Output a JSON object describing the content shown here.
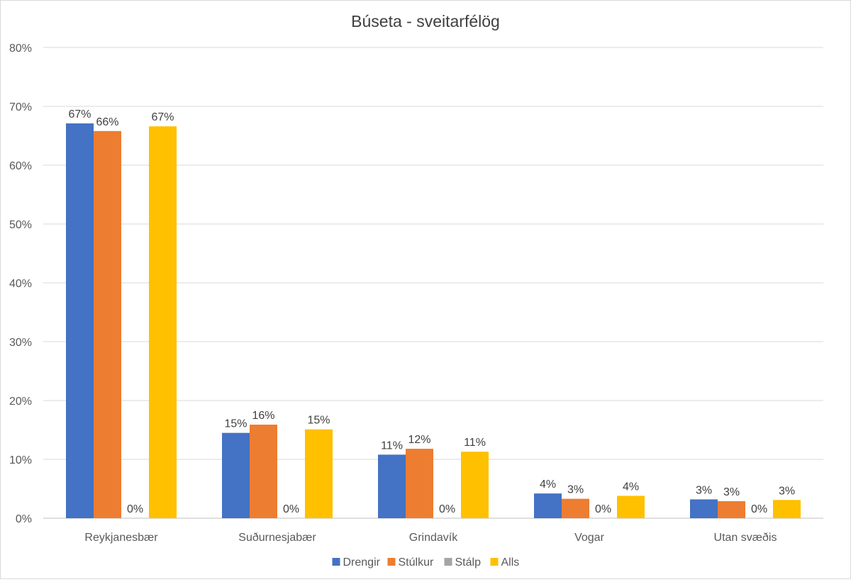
{
  "chart_data": {
    "type": "bar",
    "title": "Búseta - sveitarfélög",
    "categories": [
      "Reykjanesbær",
      "Suðurnesjabær",
      "Grindavík",
      "Vogar",
      "Utan svæðis"
    ],
    "series": [
      {
        "name": "Drengir",
        "color": "#4472C4",
        "values": [
          67.1,
          14.5,
          10.8,
          4.2,
          3.2
        ],
        "labels": [
          "67%",
          "15%",
          "11%",
          "4%",
          "3%"
        ]
      },
      {
        "name": "Stúlkur",
        "color": "#ED7D31",
        "values": [
          65.8,
          15.9,
          11.8,
          3.3,
          2.9
        ],
        "labels": [
          "66%",
          "16%",
          "12%",
          "3%",
          "3%"
        ]
      },
      {
        "name": "Stálp",
        "color": "#A5A5A5",
        "values": [
          0,
          0,
          0,
          0,
          0
        ],
        "labels": [
          "0%",
          "0%",
          "0%",
          "0%",
          "0%"
        ]
      },
      {
        "name": "Alls",
        "color": "#FFC000",
        "values": [
          66.6,
          15.1,
          11.3,
          3.8,
          3.1
        ],
        "labels": [
          "67%",
          "15%",
          "11%",
          "4%",
          "3%"
        ]
      }
    ],
    "yticks": [
      "0%",
      "10%",
      "20%",
      "30%",
      "40%",
      "50%",
      "60%",
      "70%",
      "80%"
    ],
    "ylim": [
      0,
      80
    ],
    "grid": true,
    "legend_position": "bottom"
  }
}
